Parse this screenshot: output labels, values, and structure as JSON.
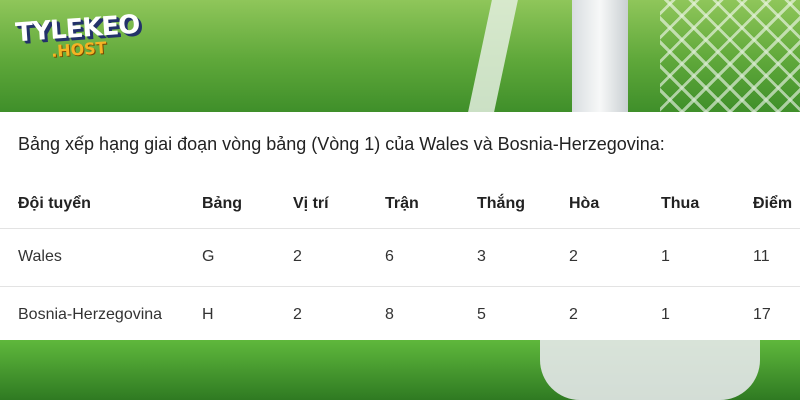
{
  "logo": {
    "line1": "TYLEKEO",
    "line2": ".HOST"
  },
  "caption": "Bảng xếp hạng giai đoạn vòng bảng (Vòng 1) của Wales và Bosnia-Herzegovina:",
  "table": {
    "headers": [
      "Đội tuyển",
      "Bảng",
      "Vị trí",
      "Trận",
      "Thắng",
      "Hòa",
      "Thua",
      "Điểm"
    ],
    "rows": [
      [
        "Wales",
        "G",
        "2",
        "6",
        "3",
        "2",
        "1",
        "11"
      ],
      [
        "Bosnia-Herzegovina",
        "H",
        "2",
        "8",
        "5",
        "2",
        "1",
        "17"
      ]
    ]
  }
}
